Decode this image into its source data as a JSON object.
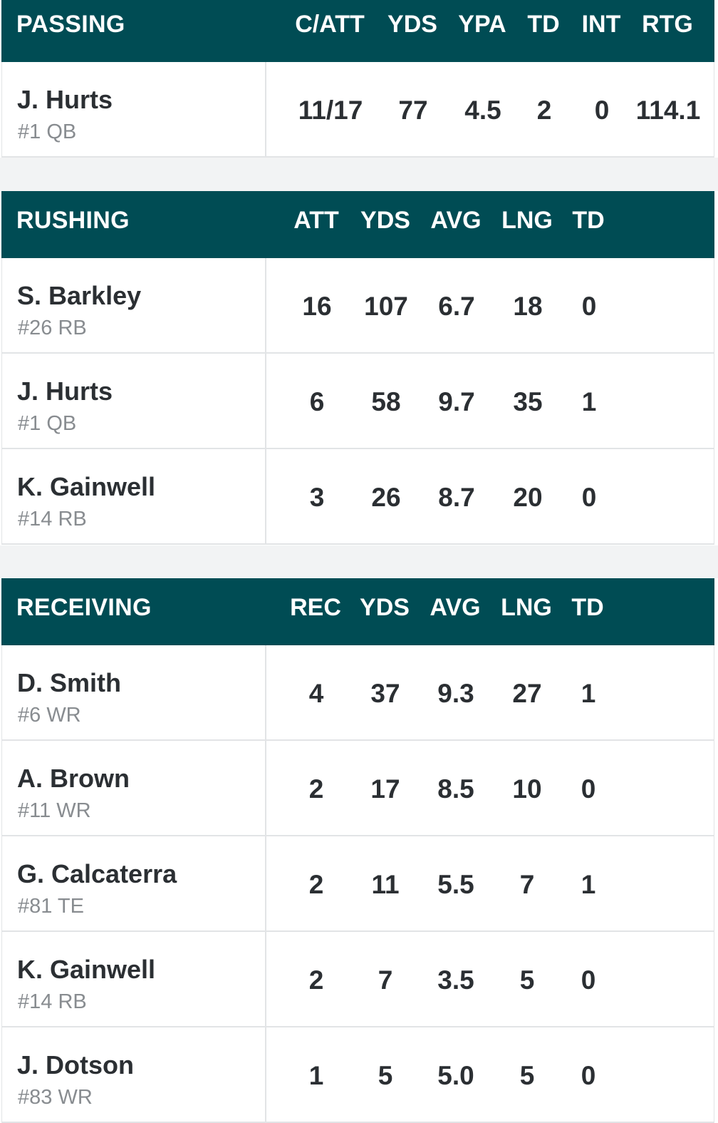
{
  "passing": {
    "title": "PASSING",
    "columns": [
      "C/ATT",
      "YDS",
      "YPA",
      "TD",
      "INT",
      "RTG"
    ],
    "rows": [
      {
        "name": "J. Hurts",
        "meta": "#1 QB",
        "values": [
          "11/17",
          "77",
          "4.5",
          "2",
          "0",
          "114.1"
        ]
      }
    ]
  },
  "rushing": {
    "title": "RUSHING",
    "columns": [
      "ATT",
      "YDS",
      "AVG",
      "LNG",
      "TD"
    ],
    "rows": [
      {
        "name": "S. Barkley",
        "meta": "#26 RB",
        "values": [
          "16",
          "107",
          "6.7",
          "18",
          "0"
        ]
      },
      {
        "name": "J. Hurts",
        "meta": "#1 QB",
        "values": [
          "6",
          "58",
          "9.7",
          "35",
          "1"
        ]
      },
      {
        "name": "K. Gainwell",
        "meta": "#14 RB",
        "values": [
          "3",
          "26",
          "8.7",
          "20",
          "0"
        ]
      }
    ]
  },
  "receiving": {
    "title": "RECEIVING",
    "columns": [
      "REC",
      "YDS",
      "AVG",
      "LNG",
      "TD"
    ],
    "rows": [
      {
        "name": "D. Smith",
        "meta": "#6 WR",
        "values": [
          "4",
          "37",
          "9.3",
          "27",
          "1"
        ]
      },
      {
        "name": "A. Brown",
        "meta": "#11 WR",
        "values": [
          "2",
          "17",
          "8.5",
          "10",
          "0"
        ]
      },
      {
        "name": "G. Calcaterra",
        "meta": "#81 TE",
        "values": [
          "2",
          "11",
          "5.5",
          "7",
          "1"
        ]
      },
      {
        "name": "K. Gainwell",
        "meta": "#14 RB",
        "values": [
          "2",
          "7",
          "3.5",
          "5",
          "0"
        ]
      },
      {
        "name": "J. Dotson",
        "meta": "#83 WR",
        "values": [
          "1",
          "5",
          "5.0",
          "5",
          "0"
        ]
      }
    ]
  },
  "colors": {
    "header_bg": "#004c54",
    "header_text": "#ffffff",
    "divider": "#e2e4e6",
    "meta_text": "#888c90"
  }
}
